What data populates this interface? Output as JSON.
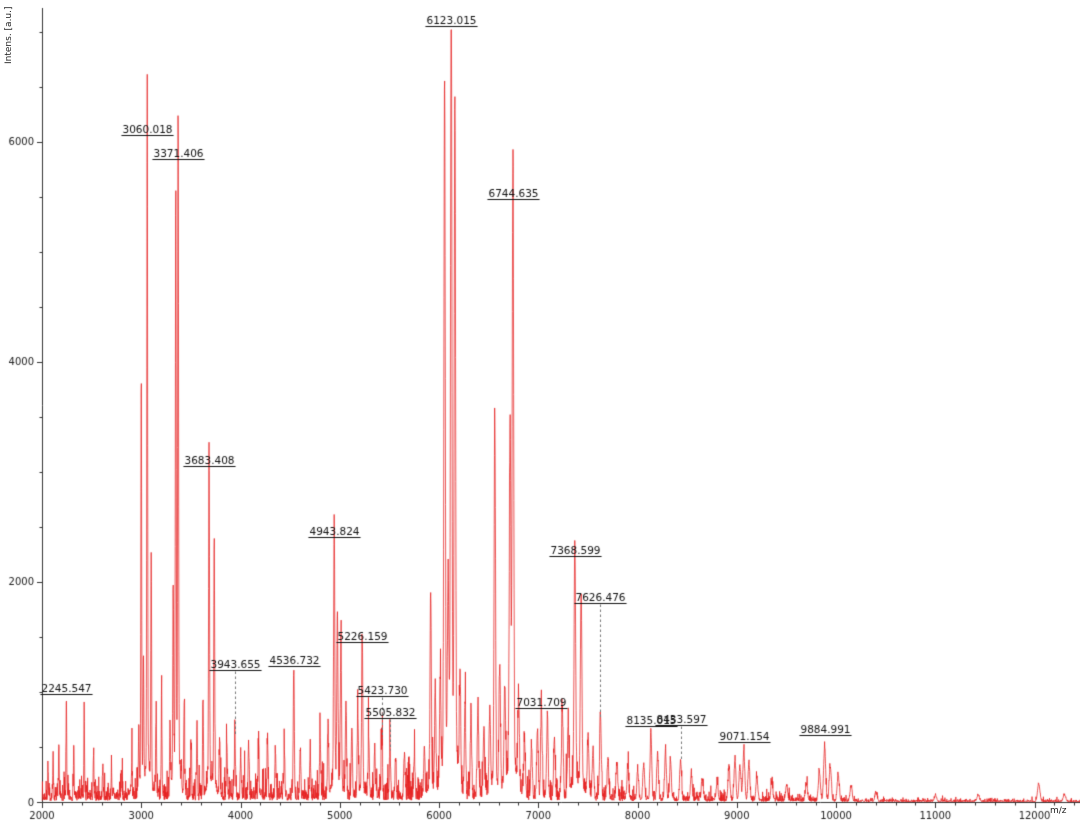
{
  "chart_data": {
    "type": "line",
    "title": "",
    "xlabel": "m/z",
    "ylabel": "Intens. [a.u.]",
    "xlim": [
      2000,
      12458
    ],
    "ylim": [
      0,
      7218
    ],
    "x_major_ticks": [
      2000,
      3000,
      4000,
      5000,
      6000,
      7000,
      8000,
      9000,
      10000,
      11000,
      12000
    ],
    "y_major_ticks": [
      0,
      2000,
      4000,
      6000
    ],
    "x_minor_step": 200,
    "y_minor_step": 500,
    "grid": false,
    "legend": false,
    "line_color": "#e62020",
    "axis_color": "#333333",
    "label_color": "#111111",
    "leader_color": "#777777",
    "noise_seed": 7,
    "peak_sigma": {
      "base": 3,
      "slope": 0.0009
    },
    "noise_base": [
      [
        2000,
        55
      ],
      [
        2800,
        70
      ],
      [
        3000,
        88
      ],
      [
        5000,
        82
      ],
      [
        6000,
        95
      ],
      [
        7500,
        78
      ],
      [
        8000,
        40
      ],
      [
        9000,
        28
      ],
      [
        10000,
        22
      ],
      [
        10300,
        12
      ],
      [
        12458,
        8
      ]
    ],
    "labeled_peaks": [
      {
        "mz": 2245.547,
        "intensity": 930,
        "label": "2245.547"
      },
      {
        "mz": 3060.018,
        "intensity": 6010,
        "label": "3060.018"
      },
      {
        "mz": 3371.406,
        "intensity": 5790,
        "label": "3371.406"
      },
      {
        "mz": 3683.408,
        "intensity": 3000,
        "label": "3683.408"
      },
      {
        "mz": 3943.655,
        "intensity": 590,
        "label": "3943.655",
        "gap": 67
      },
      {
        "mz": 4536.732,
        "intensity": 1180,
        "label": "4536.732"
      },
      {
        "mz": 4943.824,
        "intensity": 2350,
        "label": "4943.824"
      },
      {
        "mz": 5226.159,
        "intensity": 1400,
        "label": "5226.159"
      },
      {
        "mz": 5423.73,
        "intensity": 560,
        "label": "5423.730",
        "gap": 44
      },
      {
        "mz": 5505.832,
        "intensity": 450,
        "label": "5505.832",
        "gap": 34
      },
      {
        "mz": 6123.015,
        "intensity": 7000,
        "label": "6123.015"
      },
      {
        "mz": 6744.635,
        "intensity": 5430,
        "label": "6744.635"
      },
      {
        "mz": 7031.709,
        "intensity": 800,
        "label": "7031.709"
      },
      {
        "mz": 7368.599,
        "intensity": 2180,
        "label": "7368.599"
      },
      {
        "mz": 7626.476,
        "intensity": 750,
        "label": "7626.476",
        "gap": 116
      },
      {
        "mz": 8135.015,
        "intensity": 600,
        "label": "8135.015",
        "gap": 10
      },
      {
        "mz": 8433.597,
        "intensity": 350,
        "label": "8433.597",
        "gap": 38
      },
      {
        "mz": 9071.154,
        "intensity": 450,
        "label": "9071.154",
        "gap": 10
      },
      {
        "mz": 9884.991,
        "intensity": 480,
        "label": "9884.991",
        "gap": 14
      }
    ],
    "unlabeled_peaks": [
      [
        2060,
        300
      ],
      [
        2112,
        430
      ],
      [
        2170,
        520
      ],
      [
        2320,
        500
      ],
      [
        2425,
        800
      ],
      [
        2520,
        380
      ],
      [
        2612,
        300
      ],
      [
        2700,
        270
      ],
      [
        2800,
        260
      ],
      [
        2905,
        330
      ],
      [
        2975,
        520
      ],
      [
        3000,
        3700
      ],
      [
        3022,
        1150
      ],
      [
        3100,
        2050
      ],
      [
        3150,
        720
      ],
      [
        3205,
        800
      ],
      [
        3290,
        650
      ],
      [
        3322,
        1700
      ],
      [
        3348,
        5100
      ],
      [
        3432,
        800
      ],
      [
        3502,
        460
      ],
      [
        3562,
        620
      ],
      [
        3622,
        900
      ],
      [
        3735,
        2200
      ],
      [
        3790,
        520
      ],
      [
        3862,
        430
      ],
      [
        4002,
        390
      ],
      [
        4082,
        460
      ],
      [
        4182,
        390
      ],
      [
        4272,
        530
      ],
      [
        4352,
        410
      ],
      [
        4442,
        390
      ],
      [
        4602,
        430
      ],
      [
        4702,
        390
      ],
      [
        4802,
        530
      ],
      [
        4882,
        620
      ],
      [
        4976,
        1500
      ],
      [
        5012,
        1400
      ],
      [
        5062,
        820
      ],
      [
        5122,
        620
      ],
      [
        5182,
        720
      ],
      [
        5292,
        530
      ],
      [
        5352,
        410
      ],
      [
        5562,
        330
      ],
      [
        5652,
        390
      ],
      [
        5752,
        330
      ],
      [
        5852,
        420
      ],
      [
        5916,
        1800
      ],
      [
        5962,
        920
      ],
      [
        6012,
        930
      ],
      [
        6056,
        6100
      ],
      [
        6092,
        1500
      ],
      [
        6160,
        5850
      ],
      [
        6212,
        1000
      ],
      [
        6262,
        820
      ],
      [
        6322,
        720
      ],
      [
        6392,
        820
      ],
      [
        6452,
        620
      ],
      [
        6512,
        720
      ],
      [
        6562,
        3250
      ],
      [
        6612,
        1100
      ],
      [
        6662,
        920
      ],
      [
        6716,
        3100
      ],
      [
        6802,
        820
      ],
      [
        6862,
        520
      ],
      [
        6932,
        470
      ],
      [
        6992,
        620
      ],
      [
        7092,
        720
      ],
      [
        7162,
        520
      ],
      [
        7242,
        820
      ],
      [
        7302,
        620
      ],
      [
        7432,
        1750
      ],
      [
        7502,
        520
      ],
      [
        7552,
        420
      ],
      [
        7702,
        360
      ],
      [
        7792,
        310
      ],
      [
        7902,
        290
      ],
      [
        8002,
        260
      ],
      [
        8062,
        310
      ],
      [
        8202,
        390
      ],
      [
        8282,
        430
      ],
      [
        8332,
        360
      ],
      [
        8542,
        230
      ],
      [
        8652,
        190
      ],
      [
        8802,
        170
      ],
      [
        8922,
        290
      ],
      [
        8982,
        360
      ],
      [
        9032,
        310
      ],
      [
        9122,
        330
      ],
      [
        9202,
        210
      ],
      [
        9352,
        160
      ],
      [
        9502,
        140
      ],
      [
        9702,
        150
      ],
      [
        9832,
        260
      ],
      [
        9942,
        310
      ],
      [
        10022,
        230
      ],
      [
        10152,
        130
      ],
      [
        10402,
        80
      ],
      [
        11002,
        50
      ],
      [
        11432,
        60
      ],
      [
        12042,
        160
      ],
      [
        12302,
        60
      ]
    ]
  }
}
